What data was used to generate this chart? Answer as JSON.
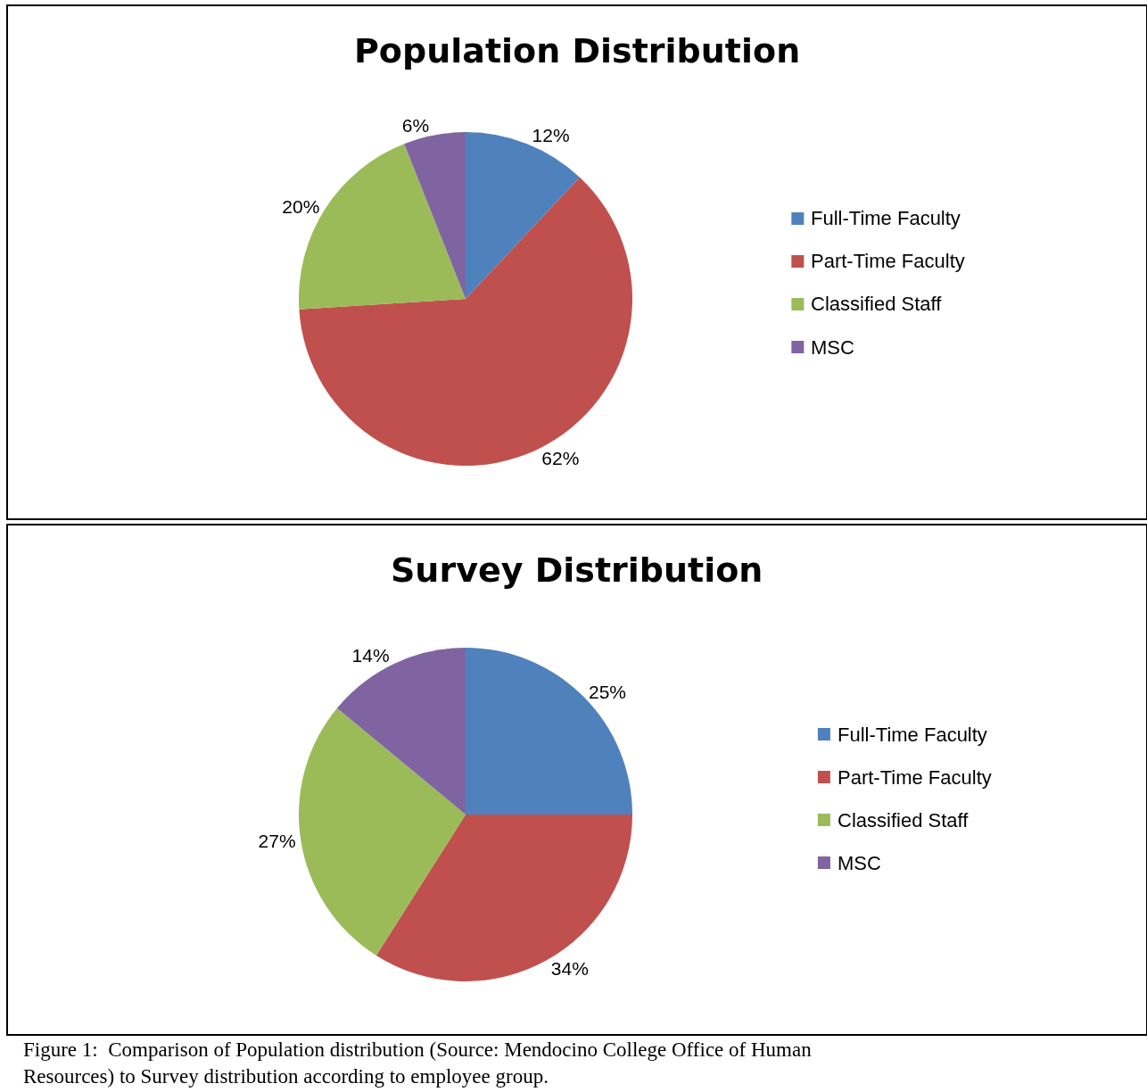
{
  "chart_data": [
    {
      "type": "pie",
      "title": "Population Distribution",
      "categories": [
        "Full-Time Faculty",
        "Part-Time Faculty",
        "Classified Staff",
        "MSC"
      ],
      "values": [
        12,
        62,
        20,
        6
      ],
      "value_labels": [
        "12%",
        "62%",
        "20%",
        "6%"
      ],
      "colors": [
        "#4f81bd",
        "#c0504d",
        "#9bbb59",
        "#8064a2"
      ],
      "legend": "right"
    },
    {
      "type": "pie",
      "title": "Survey Distribution",
      "categories": [
        "Full-Time Faculty",
        "Part-Time Faculty",
        "Classified Staff",
        "MSC"
      ],
      "values": [
        25,
        34,
        27,
        14
      ],
      "value_labels": [
        "25%",
        "34%",
        "27%",
        "14%"
      ],
      "colors": [
        "#4f81bd",
        "#c0504d",
        "#9bbb59",
        "#8064a2"
      ],
      "legend": "right",
      "annotations": [
        "Figure 1:  Comparison of Population distribution (Source: Mendocino College Office of Human Resources) to Survey distribution according to employee group."
      ]
    }
  ]
}
